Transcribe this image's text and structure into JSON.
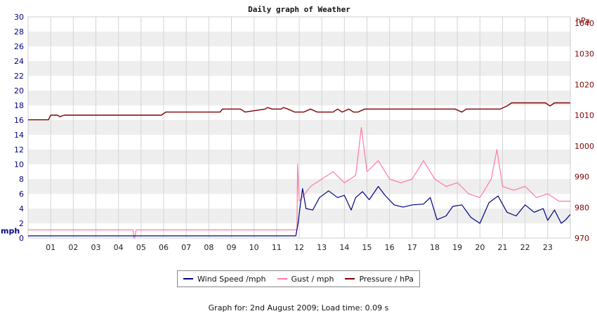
{
  "chart_data": {
    "type": "line",
    "title": "Daily graph of Weather",
    "x_ticks": [
      "01",
      "02",
      "03",
      "04",
      "05",
      "06",
      "07",
      "08",
      "09",
      "10",
      "11",
      "12",
      "13",
      "14",
      "15",
      "16",
      "17",
      "18",
      "19",
      "20",
      "21",
      "22",
      "23"
    ],
    "xlim": [
      0,
      24
    ],
    "y_left": {
      "unit": "mph",
      "lim": [
        0,
        30
      ],
      "ticks": [
        "0",
        "2",
        "4",
        "6",
        "8",
        "10",
        "12",
        "14",
        "16",
        "18",
        "20",
        "22",
        "24",
        "26",
        "28",
        "30"
      ]
    },
    "y_right": {
      "unit": "hPa",
      "lim": [
        970,
        1042
      ],
      "ticks": [
        "970",
        "980",
        "990",
        "1000",
        "1010",
        "1020",
        "1030",
        "1040"
      ]
    },
    "grid": true,
    "legend_position": "bottom",
    "series": [
      {
        "name": "Wind Speed /mph",
        "axis": "left",
        "color": "#000080",
        "x": [
          0,
          11.7,
          11.85,
          11.95,
          12.05,
          12.15,
          12.3,
          12.6,
          12.9,
          13.3,
          13.7,
          14.0,
          14.3,
          14.5,
          14.8,
          15.1,
          15.5,
          15.8,
          16.2,
          16.6,
          17.0,
          17.5,
          17.8,
          18.1,
          18.5,
          18.8,
          19.2,
          19.6,
          20.0,
          20.4,
          20.8,
          21.2,
          21.6,
          22.0,
          22.4,
          22.8,
          23.0,
          23.3,
          23.6,
          23.8,
          24.0
        ],
        "values": [
          0.3,
          0.3,
          0.3,
          2.0,
          4.5,
          6.7,
          4.0,
          3.8,
          5.5,
          6.4,
          5.5,
          5.8,
          3.8,
          5.5,
          6.3,
          5.2,
          7.0,
          5.8,
          4.5,
          4.2,
          4.5,
          4.6,
          5.5,
          2.5,
          3.0,
          4.3,
          4.5,
          2.8,
          2.0,
          4.8,
          5.7,
          3.5,
          3.0,
          4.5,
          3.5,
          4.0,
          2.4,
          3.8,
          2.0,
          2.5,
          3.2
        ]
      },
      {
        "name": "Gust / mph",
        "axis": "left",
        "color": "#ff7aa8",
        "x": [
          0,
          4.65,
          4.68,
          4.72,
          4.78,
          11.9,
          11.93,
          12.0,
          12.5,
          13.0,
          13.5,
          14.0,
          14.5,
          14.75,
          15.0,
          15.5,
          16.0,
          16.5,
          17.0,
          17.5,
          18.0,
          18.5,
          19.0,
          19.5,
          20.0,
          20.5,
          20.75,
          21.0,
          21.5,
          22.0,
          22.5,
          23.0,
          23.5,
          24.0
        ],
        "values": [
          1.1,
          1.1,
          0,
          0,
          1.1,
          1.1,
          10.0,
          5.0,
          7.0,
          8.0,
          9.0,
          7.5,
          8.5,
          15.0,
          9.0,
          10.5,
          8.0,
          7.5,
          8.0,
          10.5,
          8.0,
          7.0,
          7.5,
          6.0,
          5.5,
          8.0,
          12.0,
          7.0,
          6.5,
          7.0,
          5.5,
          6.0,
          5.0,
          5.0
        ]
      },
      {
        "name": "Pressure / hPa",
        "axis": "right",
        "color": "#800000",
        "x": [
          0,
          0.9,
          1.0,
          1.3,
          1.4,
          1.6,
          5.9,
          6.1,
          8.5,
          8.6,
          9.4,
          9.6,
          10.5,
          10.6,
          10.8,
          11.2,
          11.3,
          11.5,
          11.8,
          12.2,
          12.5,
          12.8,
          13.5,
          13.7,
          13.9,
          14.2,
          14.4,
          14.6,
          14.9,
          18.9,
          19.2,
          19.4,
          20.9,
          21.2,
          21.4,
          22.9,
          23.1,
          23.3,
          24.0
        ],
        "values": [
          1008.5,
          1008.5,
          1010,
          1010,
          1009.5,
          1010,
          1010,
          1011,
          1011,
          1012,
          1012,
          1011,
          1012,
          1012.5,
          1012,
          1012,
          1012.5,
          1012,
          1011,
          1011,
          1012,
          1011,
          1011,
          1012,
          1011,
          1012,
          1011,
          1011,
          1012,
          1012,
          1011,
          1012,
          1012,
          1013,
          1014,
          1014,
          1013,
          1014,
          1014
        ]
      }
    ]
  },
  "legend": {
    "wind_label": "Wind Speed /mph",
    "gust_label": "Gust / mph",
    "pressure_label": "Pressure / hPa"
  },
  "footer_text": "Graph for: 2nd August 2009; Load time: 0.09 s"
}
